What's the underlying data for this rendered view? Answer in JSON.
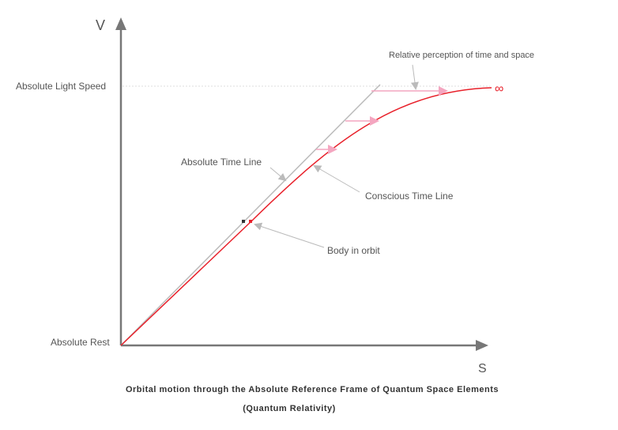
{
  "axes": {
    "y_label": "V",
    "x_label": "S",
    "top_level": "Absolute Light Speed",
    "bottom_level": "Absolute Rest"
  },
  "annotations": {
    "relative_perception": "Relative perception of time and space",
    "infinity": "∞",
    "absolute_time_line": "Absolute Time Line",
    "conscious_time_line": "Conscious Time Line",
    "body_in_orbit": "Body in orbit"
  },
  "caption": {
    "line1": "Orbital motion through the Absolute Reference Frame of Quantum Space Elements",
    "line2": "(Quantum Relativity)"
  }
}
